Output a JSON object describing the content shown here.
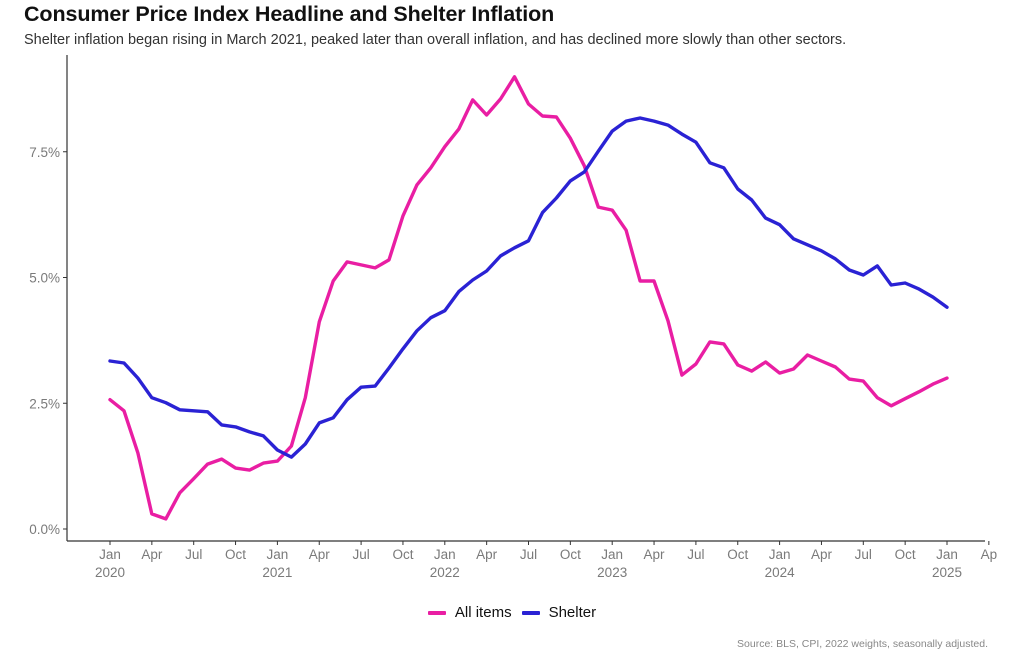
{
  "chart_data": {
    "type": "line",
    "title": "Consumer Price Index Headline and Shelter Inflation",
    "subtitle": "Shelter inflation began rising in March 2021, peaked later than overall inflation, and has declined more slowly than other sectors.",
    "caption": "Source: BLS, CPI, 2022 weights, seasonally adjusted.",
    "xlabel": "",
    "ylabel": "",
    "grid": false,
    "legend_position": "bottom",
    "x_start": "2020-01",
    "x_end": "2025-01",
    "x_range_months": [
      0,
      63
    ],
    "ylim": [
      0,
      9.1
    ],
    "y_ticks": [
      0,
      2.5,
      5.0,
      7.5
    ],
    "y_tick_labels": [
      "0.0%",
      "2.5%",
      "5.0%",
      "7.5%"
    ],
    "x_ticks": [
      {
        "month_index": 0,
        "label": "Jan",
        "year": "2020"
      },
      {
        "month_index": 3,
        "label": "Apr",
        "year": ""
      },
      {
        "month_index": 6,
        "label": "Jul",
        "year": ""
      },
      {
        "month_index": 9,
        "label": "Oct",
        "year": ""
      },
      {
        "month_index": 12,
        "label": "Jan",
        "year": "2021"
      },
      {
        "month_index": 15,
        "label": "Apr",
        "year": ""
      },
      {
        "month_index": 18,
        "label": "Jul",
        "year": ""
      },
      {
        "month_index": 21,
        "label": "Oct",
        "year": ""
      },
      {
        "month_index": 24,
        "label": "Jan",
        "year": "2022"
      },
      {
        "month_index": 27,
        "label": "Apr",
        "year": ""
      },
      {
        "month_index": 30,
        "label": "Jul",
        "year": ""
      },
      {
        "month_index": 33,
        "label": "Oct",
        "year": ""
      },
      {
        "month_index": 36,
        "label": "Jan",
        "year": "2023"
      },
      {
        "month_index": 39,
        "label": "Apr",
        "year": ""
      },
      {
        "month_index": 42,
        "label": "Jul",
        "year": ""
      },
      {
        "month_index": 45,
        "label": "Oct",
        "year": ""
      },
      {
        "month_index": 48,
        "label": "Jan",
        "year": "2024"
      },
      {
        "month_index": 51,
        "label": "Apr",
        "year": ""
      },
      {
        "month_index": 54,
        "label": "Jul",
        "year": ""
      },
      {
        "month_index": 57,
        "label": "Oct",
        "year": ""
      },
      {
        "month_index": 60,
        "label": "Jan",
        "year": "2025"
      },
      {
        "month_index": 63,
        "label": "Ap",
        "year": ""
      }
    ],
    "series": [
      {
        "name": "All items",
        "color": "#e91ea3",
        "values": [
          2.57,
          2.35,
          1.51,
          0.3,
          0.2,
          0.72,
          1.0,
          1.29,
          1.39,
          1.21,
          1.17,
          1.31,
          1.35,
          1.65,
          2.61,
          4.12,
          4.93,
          5.31,
          5.25,
          5.19,
          5.35,
          6.22,
          6.84,
          7.18,
          7.6,
          7.95,
          8.53,
          8.23,
          8.55,
          8.99,
          8.45,
          8.21,
          8.19,
          7.77,
          7.22,
          6.4,
          6.34,
          5.94,
          4.93,
          4.93,
          4.14,
          3.06,
          3.28,
          3.72,
          3.68,
          3.26,
          3.14,
          3.32,
          3.1,
          3.18,
          3.46,
          3.34,
          3.22,
          2.98,
          2.94,
          2.61,
          2.45,
          2.59,
          2.73,
          2.88,
          3.0
        ]
      },
      {
        "name": "Shelter",
        "color": "#2a22d4",
        "values": [
          3.34,
          3.3,
          3.0,
          2.61,
          2.51,
          2.37,
          2.35,
          2.33,
          2.07,
          2.03,
          1.93,
          1.85,
          1.57,
          1.43,
          1.69,
          2.11,
          2.21,
          2.57,
          2.82,
          2.84,
          3.2,
          3.58,
          3.94,
          4.2,
          4.34,
          4.72,
          4.95,
          5.13,
          5.43,
          5.59,
          5.73,
          6.29,
          6.58,
          6.92,
          7.1,
          7.51,
          7.91,
          8.11,
          8.17,
          8.11,
          8.03,
          7.85,
          7.69,
          7.28,
          7.18,
          6.76,
          6.54,
          6.18,
          6.05,
          5.77,
          5.65,
          5.53,
          5.37,
          5.15,
          5.05,
          5.23,
          4.85,
          4.89,
          4.77,
          4.61,
          4.41
        ]
      }
    ]
  }
}
